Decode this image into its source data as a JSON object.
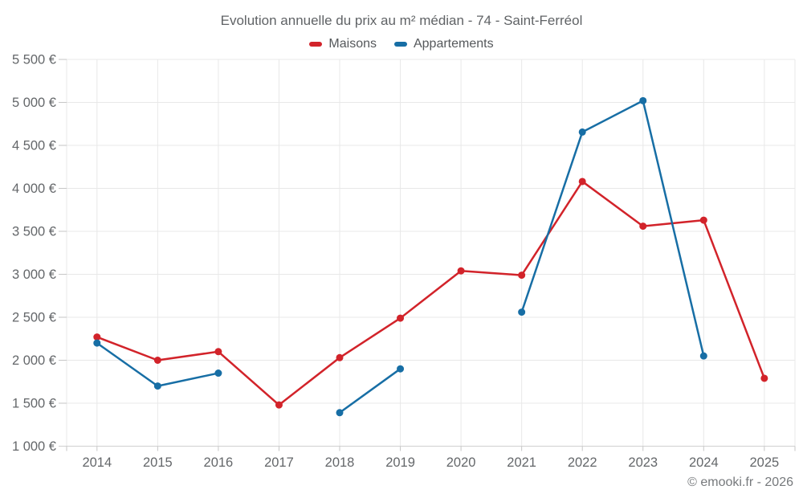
{
  "header": {
    "title": "Evolution annuelle du prix au m² médian - 74 - Saint-Ferréol"
  },
  "legend": {
    "items": [
      {
        "label": "Maisons",
        "color": "#d2232a"
      },
      {
        "label": "Appartements",
        "color": "#176ea5"
      }
    ]
  },
  "footer": {
    "copyright": "© emooki.fr - 2026"
  },
  "chart_data": {
    "type": "line",
    "title": "Evolution annuelle du prix au m² médian - 74 - Saint-Ferréol",
    "categories": [
      "2014",
      "2015",
      "2016",
      "2017",
      "2018",
      "2019",
      "2020",
      "2021",
      "2022",
      "2023",
      "2024",
      "2025"
    ],
    "series": [
      {
        "name": "Maisons",
        "color": "#d2232a",
        "values": [
          2270,
          2000,
          2100,
          1480,
          2030,
          2490,
          3040,
          2990,
          4080,
          3560,
          3630,
          1790
        ]
      },
      {
        "name": "Appartements",
        "color": "#176ea5",
        "values": [
          2200,
          1700,
          1850,
          null,
          1390,
          1900,
          null,
          2560,
          4655,
          5020,
          2050,
          null
        ]
      }
    ],
    "ylabel": "",
    "xlabel": "",
    "ylim": [
      1000,
      5500
    ],
    "y_tick_step": 500,
    "y_tick_labels": [
      "1 000 €",
      "1 500 €",
      "2 000 €",
      "2 500 €",
      "3 000 €",
      "3 500 €",
      "4 000 €",
      "4 500 €",
      "5 000 €",
      "5 500 €"
    ],
    "grid": true,
    "legend_position": "top",
    "marker": "circle",
    "footer": "© emooki.fr - 2026"
  }
}
